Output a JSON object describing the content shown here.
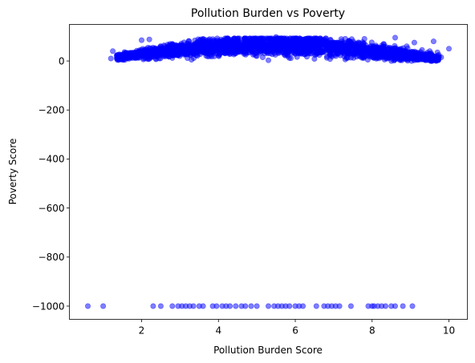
{
  "chart_data": {
    "type": "scatter",
    "title": "Pollution Burden vs Poverty",
    "xlabel": "Pollution Burden Score",
    "ylabel": "Poverty Score",
    "xlim": [
      0.12,
      10.48
    ],
    "ylim": [
      -1054,
      149
    ],
    "xticks": [
      2,
      4,
      6,
      8,
      10
    ],
    "yticks": [
      0,
      -200,
      -400,
      -600,
      -800,
      -1000
    ],
    "xtick_labels": [
      "2",
      "4",
      "6",
      "8",
      "10"
    ],
    "ytick_labels": [
      "0",
      "−200",
      "−400",
      "−600",
      "−800",
      "−1000"
    ],
    "grid": false,
    "marker_color": "#0000ff",
    "marker_alpha": 0.5,
    "cluster_main": {
      "x_range": [
        1.2,
        10.0
      ],
      "y_range": [
        0,
        98
      ],
      "points": [
        [
          1.2,
          10
        ],
        [
          1.25,
          40
        ],
        [
          1.4,
          15
        ],
        [
          1.6,
          20
        ],
        [
          1.8,
          25
        ],
        [
          2.0,
          85
        ],
        [
          2.2,
          88
        ],
        [
          2.4,
          40
        ],
        [
          2.6,
          60
        ],
        [
          2.8,
          70
        ],
        [
          3.0,
          45
        ],
        [
          3.2,
          30
        ],
        [
          3.5,
          75
        ],
        [
          3.8,
          55
        ],
        [
          4.0,
          65
        ],
        [
          4.2,
          35
        ],
        [
          4.5,
          82
        ],
        [
          4.8,
          50
        ],
        [
          5.0,
          60
        ],
        [
          5.2,
          40
        ],
        [
          5.5,
          98
        ],
        [
          5.8,
          70
        ],
        [
          6.0,
          90
        ],
        [
          6.2,
          55
        ],
        [
          6.5,
          85
        ],
        [
          6.8,
          45
        ],
        [
          7.0,
          75
        ],
        [
          7.2,
          60
        ],
        [
          7.5,
          65
        ],
        [
          7.8,
          90
        ],
        [
          8.0,
          55
        ],
        [
          8.3,
          70
        ],
        [
          8.6,
          95
        ],
        [
          8.9,
          60
        ],
        [
          9.1,
          75
        ],
        [
          9.3,
          45
        ],
        [
          9.5,
          40
        ],
        [
          9.6,
          80
        ],
        [
          9.7,
          35
        ],
        [
          9.8,
          15
        ],
        [
          10.0,
          50
        ],
        [
          3.3,
          5
        ],
        [
          5.3,
          3
        ],
        [
          7.3,
          6
        ],
        [
          8.8,
          10
        ]
      ]
    },
    "outliers_y": -1000,
    "outliers_x": [
      0.6,
      1.0,
      2.3,
      2.5,
      2.8,
      2.95,
      3.05,
      3.15,
      3.25,
      3.35,
      3.5,
      3.6,
      3.85,
      3.95,
      4.1,
      4.2,
      4.3,
      4.45,
      4.6,
      4.7,
      4.85,
      5.0,
      5.3,
      5.45,
      5.55,
      5.65,
      5.75,
      5.85,
      6.0,
      6.1,
      6.2,
      6.55,
      6.75,
      6.85,
      6.95,
      7.05,
      7.15,
      7.45,
      7.9,
      8.0,
      8.05,
      8.15,
      8.25,
      8.35,
      8.5,
      8.6,
      8.8,
      9.05
    ]
  }
}
